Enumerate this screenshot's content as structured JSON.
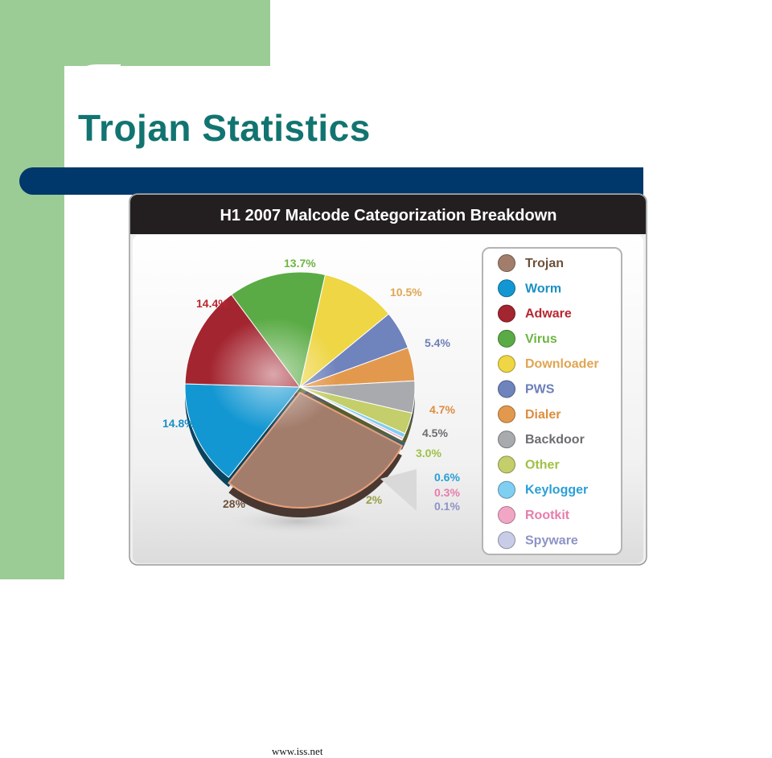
{
  "slide": {
    "title": "Trojan Statistics",
    "source": "www.iss.net"
  },
  "colors": {
    "accent_green": "#9ccc96",
    "title_teal": "#127470",
    "bar_navy": "#01386b"
  },
  "chart_data": {
    "type": "pie",
    "title": "H1 2007 Malcode Categorization Breakdown",
    "legend_position": "right",
    "slices": [
      {
        "name": "Trojan",
        "value": 28,
        "label": "28%",
        "color": "#a37d6c",
        "label_color": "#6e5039"
      },
      {
        "name": "Worm",
        "value": 14.8,
        "label": "14.8%",
        "color": "#1397d2",
        "label_color": "#1a8fc5"
      },
      {
        "name": "Adware",
        "value": 14.4,
        "label": "14.4%",
        "color": "#a32530",
        "label_color": "#b8262f"
      },
      {
        "name": "Virus",
        "value": 13.7,
        "label": "13.7%",
        "color": "#5aab45",
        "label_color": "#6db543"
      },
      {
        "name": "Downloader",
        "value": 10.5,
        "label": "10.5%",
        "color": "#eed645",
        "label_color": "#e0a552"
      },
      {
        "name": "PWS",
        "value": 5.4,
        "label": "5.4%",
        "color": "#6f83bd",
        "label_color": "#6c7fb8"
      },
      {
        "name": "Dialer",
        "value": 4.7,
        "label": "4.7%",
        "color": "#e3994d",
        "label_color": "#de8d3e"
      },
      {
        "name": "Backdoor",
        "value": 4.5,
        "label": "4.5%",
        "color": "#a9aaae",
        "label_color": "#6c6d70"
      },
      {
        "name": "Other",
        "value": 3.0,
        "label": "3.0%",
        "color": "#c4ce6a",
        "label_color": "#9fc145"
      },
      {
        "name": "Keylogger",
        "value": 0.6,
        "label": "0.6%",
        "color": "#7fcff2",
        "label_color": "#2a9fd6"
      },
      {
        "name": "Rootkit",
        "value": 0.3,
        "label": "0.3%",
        "color": "#f2a6c6",
        "label_color": "#e87cab"
      },
      {
        "name": "Spyware",
        "value": 0.1,
        "label": "0.1%",
        "color": "#c9cce6",
        "label_color": "#8d93c7"
      }
    ],
    "sum_label": "2%"
  }
}
